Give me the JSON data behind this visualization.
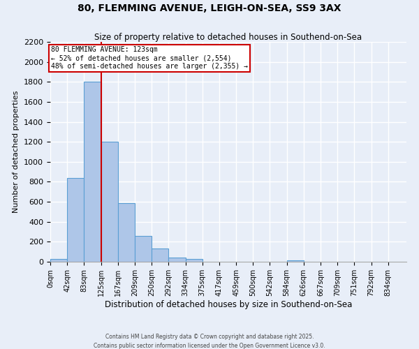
{
  "title": "80, FLEMMING AVENUE, LEIGH-ON-SEA, SS9 3AX",
  "subtitle": "Size of property relative to detached houses in Southend-on-Sea",
  "xlabel": "Distribution of detached houses by size in Southend-on-Sea",
  "ylabel": "Number of detached properties",
  "bin_edges": [
    0,
    41.5,
    83,
    124.5,
    166,
    207.5,
    249,
    290.5,
    332,
    373.5,
    415,
    456.5,
    498,
    539.5,
    581,
    622.5,
    664,
    705.5,
    747,
    788.5,
    830,
    875
  ],
  "bar_heights": [
    25,
    840,
    1800,
    1200,
    590,
    255,
    130,
    45,
    30,
    0,
    0,
    0,
    0,
    0,
    15,
    0,
    0,
    0,
    0,
    0,
    0
  ],
  "xtick_labels": [
    "0sqm",
    "42sqm",
    "83sqm",
    "125sqm",
    "167sqm",
    "209sqm",
    "250sqm",
    "292sqm",
    "334sqm",
    "375sqm",
    "417sqm",
    "459sqm",
    "500sqm",
    "542sqm",
    "584sqm",
    "626sqm",
    "667sqm",
    "709sqm",
    "751sqm",
    "792sqm",
    "834sqm"
  ],
  "xtick_positions": [
    0,
    41.5,
    83,
    124.5,
    166,
    207.5,
    249,
    290.5,
    332,
    373.5,
    415,
    456.5,
    498,
    539.5,
    581,
    622.5,
    664,
    705.5,
    747,
    788.5,
    830
  ],
  "bar_color": "#aec6e8",
  "bar_edge_color": "#5a9fd4",
  "red_line_x": 124.5,
  "property_label": "80 FLEMMING AVENUE: 123sqm",
  "annotation_line1": "← 52% of detached houses are smaller (2,554)",
  "annotation_line2": "48% of semi-detached houses are larger (2,355) →",
  "annotation_border_color": "#cc0000",
  "ylim": [
    0,
    2200
  ],
  "ytick_vals": [
    0,
    200,
    400,
    600,
    800,
    1000,
    1200,
    1400,
    1600,
    1800,
    2000,
    2200
  ],
  "background_color": "#e8eef8",
  "grid_color": "#ffffff",
  "footer_line1": "Contains HM Land Registry data © Crown copyright and database right 2025.",
  "footer_line2": "Contains public sector information licensed under the Open Government Licence v3.0."
}
